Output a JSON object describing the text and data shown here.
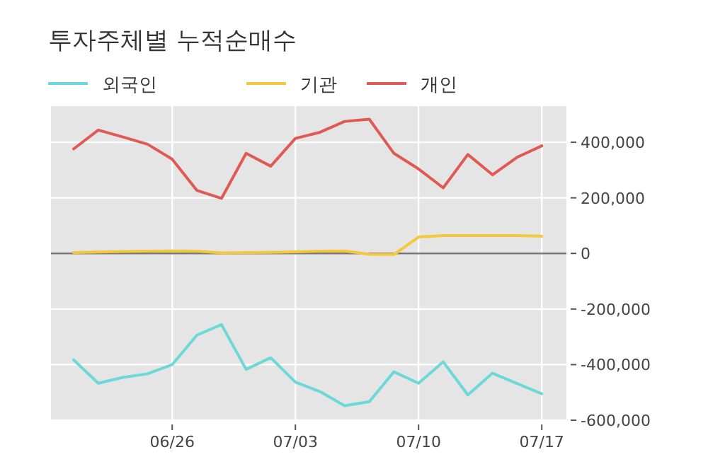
{
  "chart_data": {
    "type": "line",
    "title": "투자주체별 누적순매수",
    "categories": [
      null,
      null,
      null,
      null,
      "06/26",
      null,
      null,
      null,
      null,
      "07/03",
      null,
      null,
      null,
      null,
      "07/10",
      null,
      null,
      null,
      null,
      "07/17"
    ],
    "series": [
      {
        "name": "외국인",
        "color": "#6dd8d8",
        "values": [
          -383000,
          -467000,
          -446000,
          -433000,
          -400000,
          -294000,
          -256000,
          -417000,
          -375000,
          -463000,
          -497000,
          -548000,
          -533000,
          -426000,
          -467000,
          -390000,
          -509000,
          -431000,
          -468000,
          -505000
        ]
      },
      {
        "name": "기관",
        "color": "#f5c83c",
        "values": [
          3000,
          5000,
          7000,
          8000,
          9000,
          8000,
          2000,
          3000,
          4000,
          6000,
          8000,
          9000,
          -3000,
          -4000,
          59000,
          64000,
          64000,
          64000,
          64000,
          62000
        ]
      },
      {
        "name": "개인",
        "color": "#e05a55",
        "values": [
          376000,
          444000,
          419000,
          393000,
          339000,
          227000,
          198000,
          360000,
          314000,
          414000,
          436000,
          475000,
          483000,
          360000,
          304000,
          236000,
          356000,
          283000,
          346000,
          387000
        ]
      }
    ],
    "ylim": [
      -600000,
      530000
    ],
    "yticks": [
      {
        "value": -600000,
        "label": "-600,000"
      },
      {
        "value": -400000,
        "label": "-400,000"
      },
      {
        "value": -200000,
        "label": "-200,000"
      },
      0,
      {
        "value": 200000,
        "label": "200,000"
      },
      {
        "value": 400000,
        "label": "400,000"
      }
    ],
    "ref_lines": [
      {
        "axis": "y",
        "value": 0,
        "color": "#777777"
      }
    ],
    "grid": true,
    "legend": "top left",
    "marker": "none",
    "line_style": "solid"
  }
}
